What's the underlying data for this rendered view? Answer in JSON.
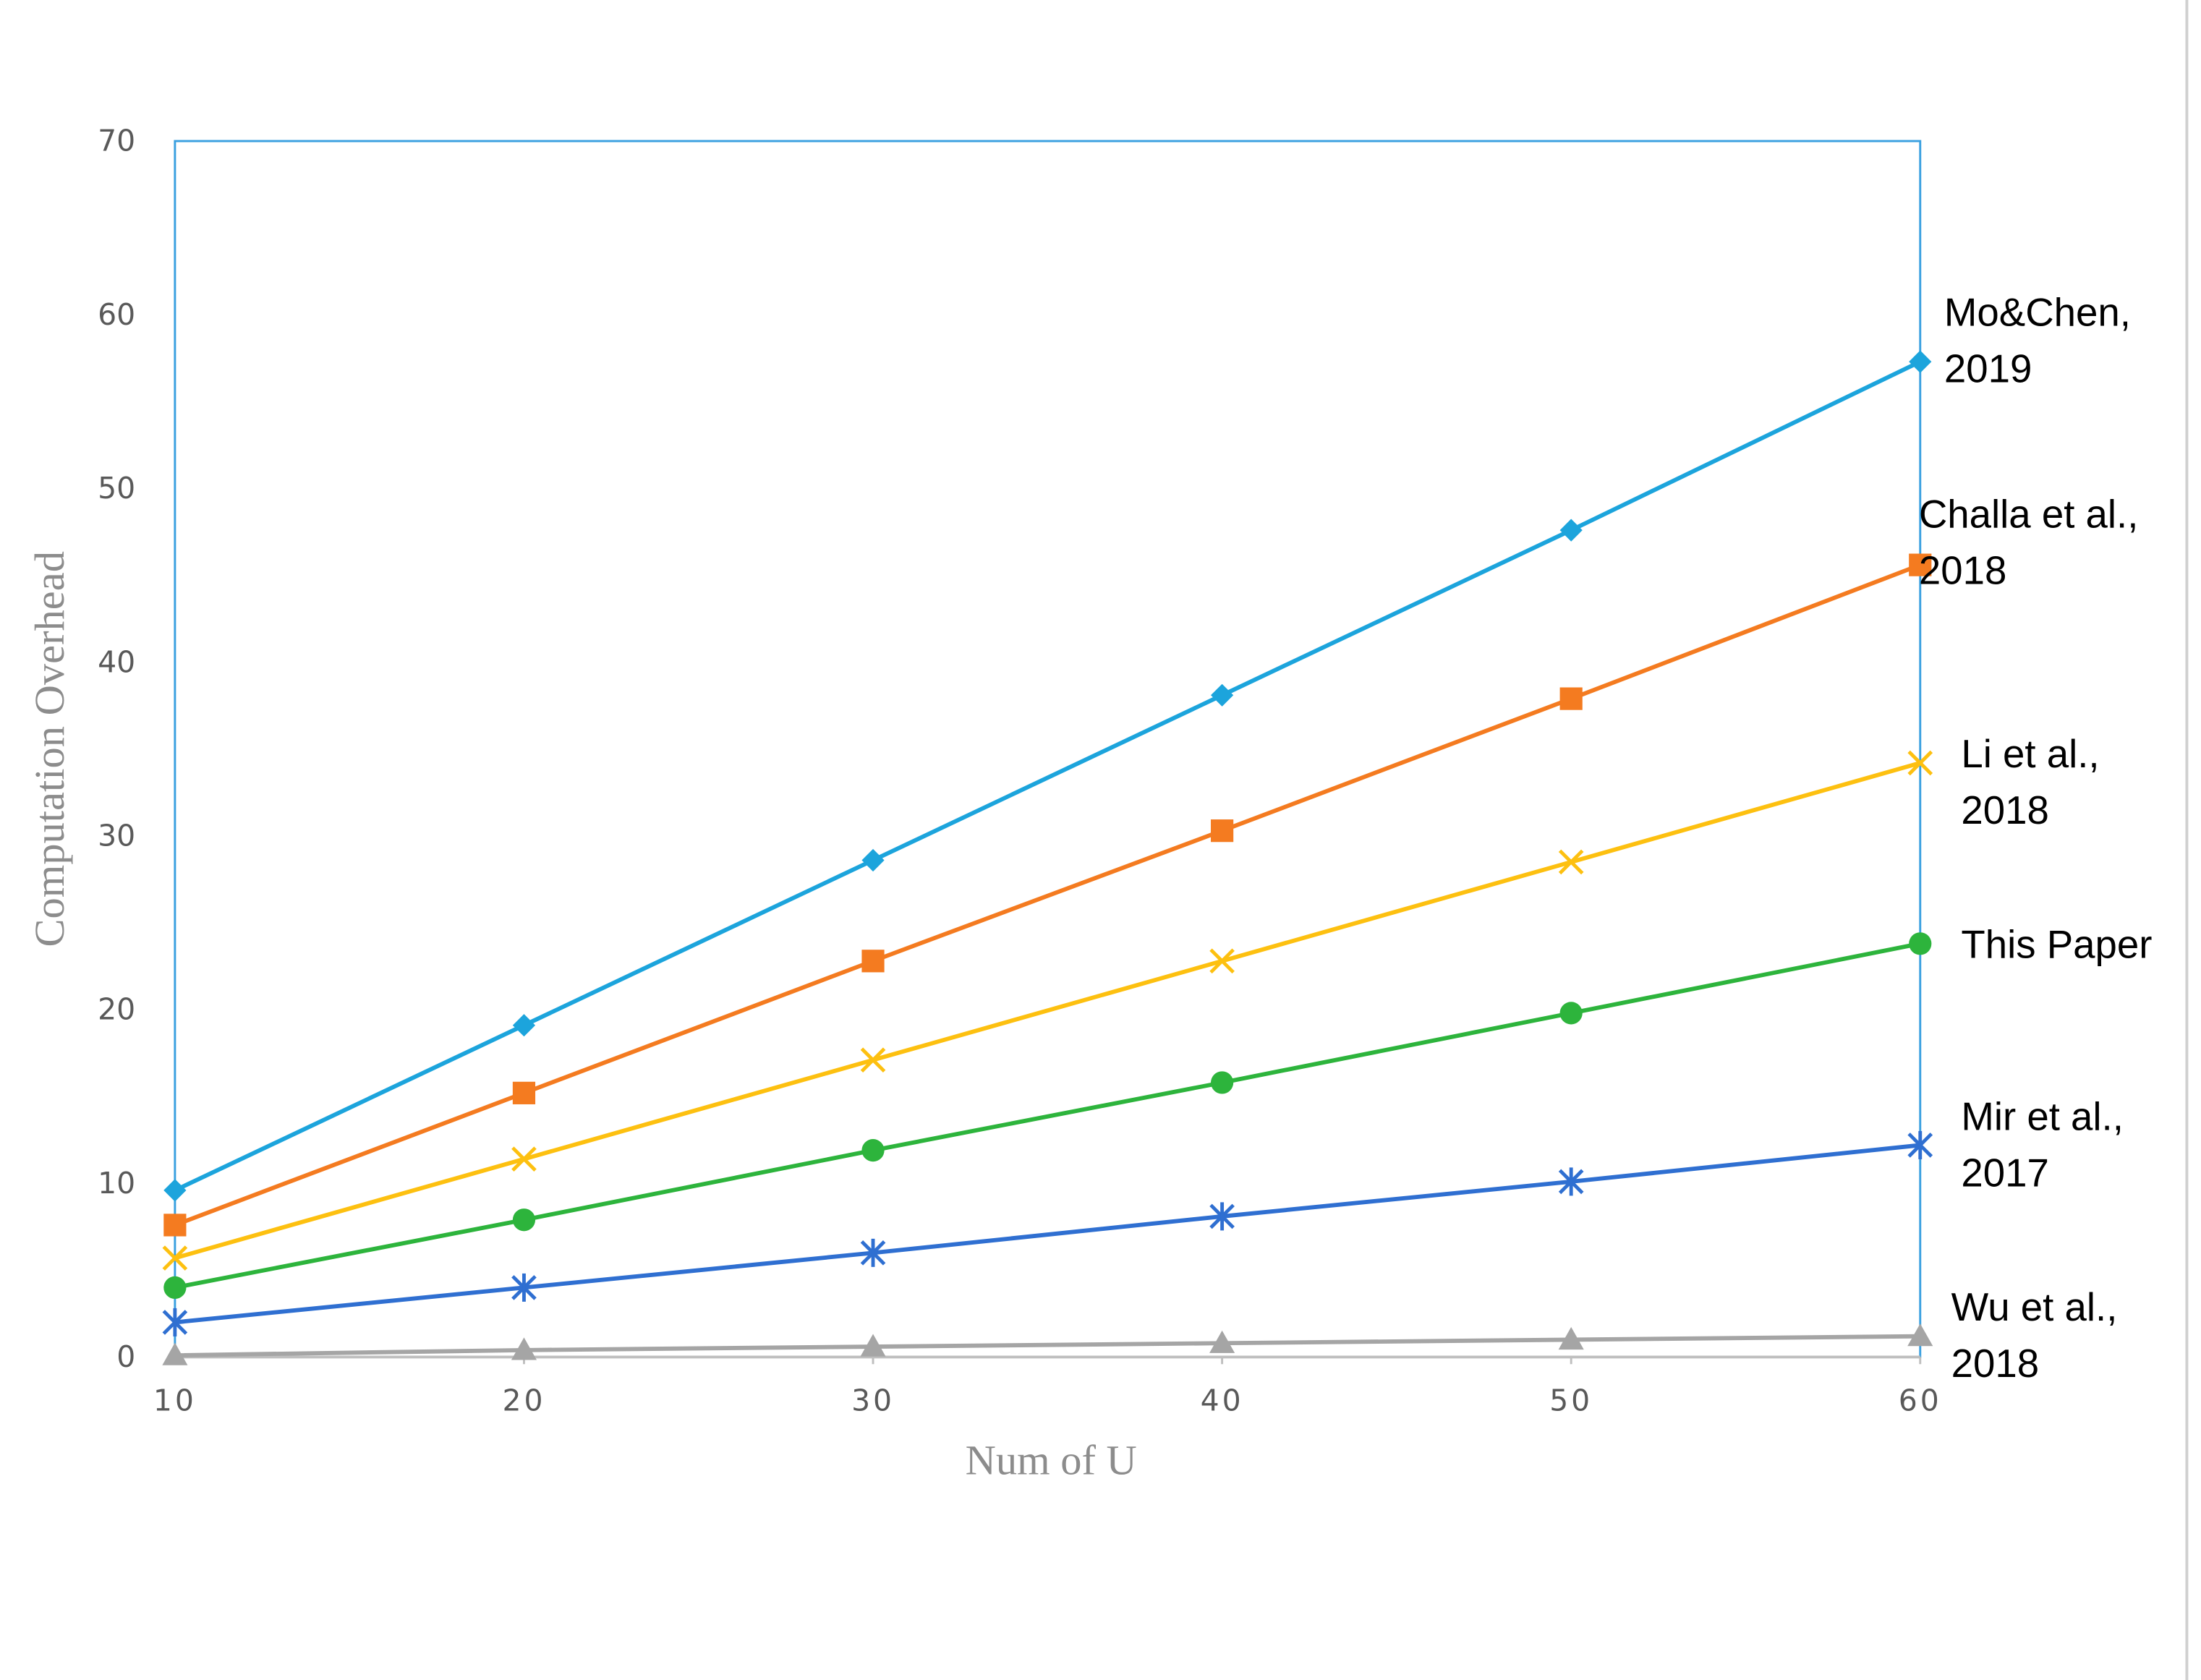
{
  "chart_data": {
    "type": "line",
    "x_label": "Num of U",
    "y_label": "Computation Overhead",
    "x": [
      10,
      20,
      30,
      40,
      50,
      60
    ],
    "xlim": [
      10,
      60
    ],
    "xticks": [
      10,
      20,
      30,
      40,
      50,
      60
    ],
    "ylim": [
      0,
      70
    ],
    "yticks": [
      0,
      10,
      20,
      30,
      40,
      50,
      60,
      70
    ],
    "grid": false,
    "series": [
      {
        "name": "Mo&Chen, 2019",
        "color": "#1ca4dc",
        "marker": "diamond",
        "values": [
          9.6,
          19.1,
          28.6,
          38.1,
          47.6,
          57.3
        ]
      },
      {
        "name": "Challa et al., 2018",
        "color": "#f47b20",
        "marker": "square",
        "values": [
          7.6,
          15.2,
          22.8,
          30.3,
          37.9,
          45.6
        ]
      },
      {
        "name": "Li et al., 2018",
        "color": "#fdc010",
        "marker": "x",
        "values": [
          5.7,
          11.4,
          17.1,
          22.8,
          28.5,
          34.2
        ]
      },
      {
        "name": "This Paper",
        "color": "#2db43c",
        "marker": "circle",
        "values": [
          4.0,
          7.9,
          11.9,
          15.8,
          19.8,
          23.8
        ]
      },
      {
        "name": "Mir et al., 2017",
        "color": "#2f6fd1",
        "marker": "asterisk",
        "values": [
          2.0,
          4.0,
          6.0,
          8.1,
          10.1,
          12.2
        ]
      },
      {
        "name": "Wu et al., 2018",
        "color": "#a5a5a5",
        "marker": "triangle",
        "values": [
          0.1,
          0.4,
          0.6,
          0.8,
          1.0,
          1.2
        ]
      }
    ]
  }
}
